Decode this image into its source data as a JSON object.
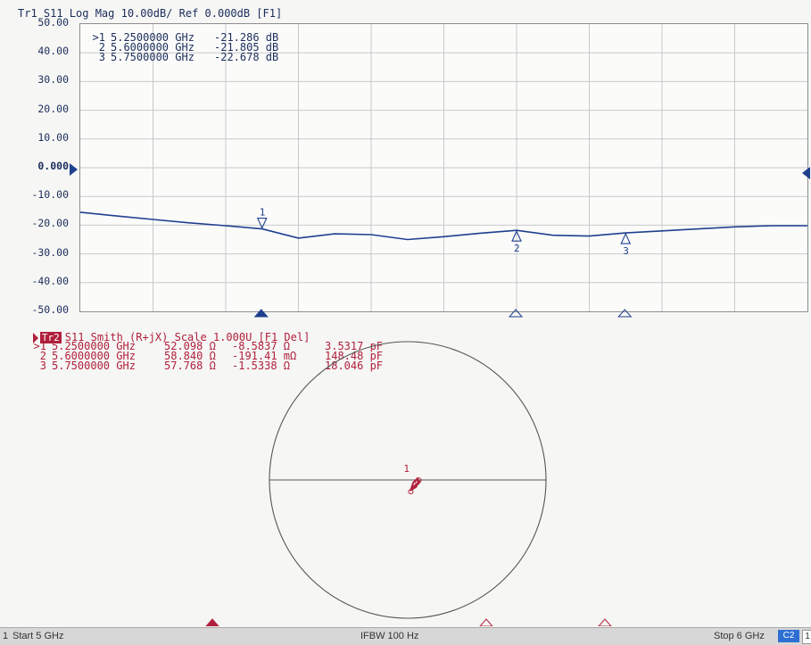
{
  "trace1": {
    "title": "Tr1 S11 Log Mag 10.00dB/ Ref 0.000dB [F1]",
    "markers": [
      {
        "id": ">1",
        "freq": "5.2500000 GHz",
        "value": "-21.286 dB"
      },
      {
        "id": "2",
        "freq": "5.6000000 GHz",
        "value": "-21.805 dB"
      },
      {
        "id": "3",
        "freq": "5.7500000 GHz",
        "value": "-22.678 dB"
      }
    ],
    "ref_tick": "0.000"
  },
  "trace2": {
    "badge": "Tr2",
    "title": "S11 Smith (R+jX) Scale 1.000U [F1 Del]",
    "markers": [
      {
        "id": ">1",
        "freq": "5.2500000 GHz",
        "r": "52.098 Ω",
        "x": "-8.5837 Ω",
        "c": "3.5317 pF"
      },
      {
        "id": "2",
        "freq": "5.6000000 GHz",
        "r": "58.840 Ω",
        "x": "-191.41 mΩ",
        "c": "148.48 pF"
      },
      {
        "id": "3",
        "freq": "5.7500000 GHz",
        "r": "57.768 Ω",
        "x": "-1.5338 Ω",
        "c": "18.046 pF"
      }
    ]
  },
  "status": {
    "channel": "1",
    "start": "Start 5 GHz",
    "ifbw": "IFBW 100 Hz",
    "stop": "Stop 6 GHz",
    "c2": "C2",
    "last": "1"
  },
  "colors": {
    "trace1": "#1f3f8f",
    "trace2": "#b0203c",
    "grid": "#c9c9c9"
  },
  "chart_data": [
    {
      "type": "line",
      "xlabel": "",
      "ylabel": "",
      "xlim": [
        5.0,
        6.0
      ],
      "ylim": [
        -50,
        50
      ],
      "y_ticks": [
        "50.00",
        "40.00",
        "30.00",
        "20.00",
        "10.00",
        "0.000",
        "-10.00",
        "-20.00",
        "-30.00",
        "-40.00",
        "-50.00"
      ],
      "grid": true,
      "series": [
        {
          "x": [
            5.0,
            5.05,
            5.1,
            5.15,
            5.2,
            5.25,
            5.3,
            5.35,
            5.4,
            5.45,
            5.5,
            5.55,
            5.6,
            5.65,
            5.7,
            5.75,
            5.8,
            5.85,
            5.9,
            5.95,
            6.0
          ],
          "y": [
            -15.5,
            -16.8,
            -18.0,
            -19.2,
            -20.2,
            -21.3,
            -24.5,
            -23.0,
            -23.3,
            -25.0,
            -24.0,
            -22.8,
            -21.8,
            -23.5,
            -23.8,
            -22.7,
            -22.0,
            -21.3,
            -20.6,
            -20.2,
            -20.2
          ]
        }
      ],
      "markers": [
        {
          "label": "1",
          "x": 5.25,
          "y": -21.286
        },
        {
          "label": "2",
          "x": 5.6,
          "y": -21.805
        },
        {
          "label": "3",
          "x": 5.75,
          "y": -22.678
        }
      ]
    },
    {
      "type": "scatter",
      "xlabel": "",
      "ylabel": "",
      "smith_scale": 1.0,
      "markers": [
        {
          "label": "1",
          "re": 0.022,
          "im": -0.085
        },
        {
          "label": "2",
          "re": 0.081,
          "im": -0.002
        },
        {
          "label": "3",
          "re": 0.072,
          "im": -0.015
        }
      ]
    }
  ]
}
